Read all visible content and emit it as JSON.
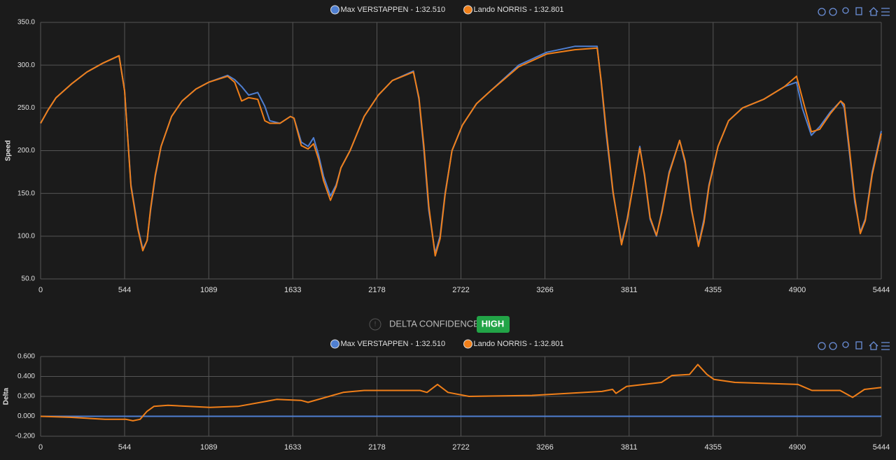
{
  "chart_data": [
    {
      "type": "line",
      "ylabel": "Speed",
      "x": [
        0,
        50,
        100,
        200,
        300,
        400,
        508,
        544,
        585,
        630,
        662,
        690,
        712,
        743,
        780,
        848,
        916,
        1006,
        1089,
        1211,
        1257,
        1302,
        1347,
        1406,
        1452,
        1484,
        1550,
        1618,
        1641,
        1688,
        1732,
        1768,
        1800,
        1832,
        1877,
        1914,
        1945,
        2004,
        2095,
        2187,
        2278,
        2414,
        2450,
        2482,
        2514,
        2555,
        2587,
        2619,
        2664,
        2732,
        2823,
        2914,
        3096,
        3277,
        3459,
        3604,
        3630,
        3662,
        3707,
        3762,
        3798,
        3843,
        3880,
        3911,
        3947,
        3988,
        4024,
        4070,
        4138,
        4174,
        4215,
        4260,
        4296,
        4328,
        4387,
        4455,
        4546,
        4682,
        4818,
        4895,
        4932,
        4991,
        5045,
        5113,
        5181,
        5204,
        5236,
        5272,
        5308,
        5340,
        5385,
        5444
      ],
      "series": [
        {
          "name": "Max VERSTAPPEN - 1:32.510",
          "color": "#4f7fd1",
          "values": [
            232,
            248,
            262,
            278,
            292,
            302,
            311,
            270,
            160,
            110,
            85,
            95,
            130,
            170,
            205,
            240,
            258,
            272,
            280,
            288,
            283,
            275,
            265,
            268,
            252,
            235,
            232,
            240,
            238,
            210,
            205,
            215,
            195,
            170,
            147,
            160,
            180,
            200,
            240,
            265,
            282,
            293,
            260,
            200,
            130,
            80,
            100,
            150,
            200,
            230,
            255,
            270,
            300,
            315,
            322,
            322,
            280,
            220,
            150,
            92,
            120,
            165,
            205,
            170,
            120,
            100,
            130,
            175,
            212,
            185,
            130,
            90,
            120,
            160,
            205,
            235,
            250,
            260,
            275,
            280,
            250,
            218,
            228,
            245,
            258,
            250,
            200,
            140,
            105,
            120,
            175,
            223
          ]
        },
        {
          "name": "Lando NORRIS - 1:32.801",
          "color": "#f07f19",
          "values": [
            232,
            248,
            262,
            278,
            292,
            302,
            311,
            270,
            158,
            108,
            83,
            95,
            132,
            172,
            205,
            240,
            258,
            272,
            280,
            287,
            280,
            258,
            262,
            260,
            235,
            232,
            232,
            240,
            238,
            206,
            202,
            208,
            190,
            165,
            142,
            158,
            180,
            200,
            240,
            265,
            282,
            292,
            262,
            205,
            135,
            77,
            97,
            148,
            200,
            230,
            255,
            270,
            298,
            313,
            318,
            320,
            282,
            225,
            152,
            90,
            118,
            165,
            203,
            172,
            122,
            101,
            128,
            173,
            212,
            188,
            132,
            88,
            116,
            158,
            205,
            235,
            250,
            260,
            275,
            287,
            262,
            222,
            225,
            243,
            258,
            254,
            205,
            145,
            103,
            118,
            172,
            220
          ]
        }
      ],
      "xlim": [
        0,
        5444
      ],
      "xticks": [
        0,
        544,
        1089,
        1633,
        2178,
        2722,
        3266,
        3811,
        4355,
        4900,
        5444
      ],
      "ylim": [
        50,
        350
      ],
      "yticks": [
        {
          "value": 50,
          "label": "50.0"
        },
        {
          "value": 100,
          "label": "100.0"
        },
        {
          "value": 150,
          "label": "150.0"
        },
        {
          "value": 200,
          "label": "200.0"
        },
        {
          "value": 250,
          "label": "250.0"
        },
        {
          "value": 300,
          "label": "300.0"
        },
        {
          "value": 350,
          "label": "350.0"
        }
      ],
      "grid": true
    },
    {
      "type": "line",
      "ylabel": "Delta",
      "x": [
        0,
        190,
        417,
        553,
        598,
        644,
        689,
        734,
        825,
        1097,
        1278,
        1460,
        1528,
        1686,
        1732,
        1868,
        1959,
        2095,
        2457,
        2502,
        2570,
        2638,
        2774,
        3182,
        3635,
        3704,
        3726,
        3794,
        3907,
        4020,
        4088,
        4202,
        4256,
        4315,
        4361,
        4496,
        4904,
        4995,
        5177,
        5258,
        5335,
        5444
      ],
      "series": [
        {
          "name": "Max VERSTAPPEN - 1:32.510",
          "color": "#4f7fd1",
          "values": [
            0,
            0,
            0,
            0,
            0,
            0,
            0,
            0,
            0,
            0,
            0,
            0,
            0,
            0,
            0,
            0,
            0,
            0,
            0,
            0,
            0,
            0,
            0,
            0,
            0,
            0,
            0,
            0,
            0,
            0,
            0,
            0,
            0,
            0,
            0,
            0,
            0,
            0,
            0,
            0,
            0,
            0
          ]
        },
        {
          "name": "Lando NORRIS - 1:32.801",
          "color": "#f07f19",
          "values": [
            0,
            -0.01,
            -0.03,
            -0.03,
            -0.045,
            -0.03,
            0.05,
            0.1,
            0.11,
            0.09,
            0.1,
            0.15,
            0.17,
            0.16,
            0.14,
            0.2,
            0.24,
            0.26,
            0.26,
            0.24,
            0.32,
            0.24,
            0.2,
            0.21,
            0.25,
            0.27,
            0.23,
            0.3,
            0.32,
            0.34,
            0.41,
            0.42,
            0.52,
            0.42,
            0.37,
            0.34,
            0.32,
            0.26,
            0.26,
            0.19,
            0.27,
            0.29
          ]
        }
      ],
      "xlim": [
        0,
        5444
      ],
      "xticks": [
        0,
        544,
        1089,
        1633,
        2178,
        2722,
        3266,
        3811,
        4355,
        4900,
        5444
      ],
      "ylim": [
        -0.2,
        0.6
      ],
      "yticks": [
        {
          "value": -0.2,
          "label": "-0.200"
        },
        {
          "value": 0,
          "label": "0.000"
        },
        {
          "value": 0.2,
          "label": "0.200"
        },
        {
          "value": 0.4,
          "label": "0.400"
        },
        {
          "value": 0.6,
          "label": "0.600"
        }
      ],
      "grid": true
    }
  ],
  "delta_confidence": {
    "label": "DELTA CONFIDENCE:",
    "value": "HIGH"
  }
}
